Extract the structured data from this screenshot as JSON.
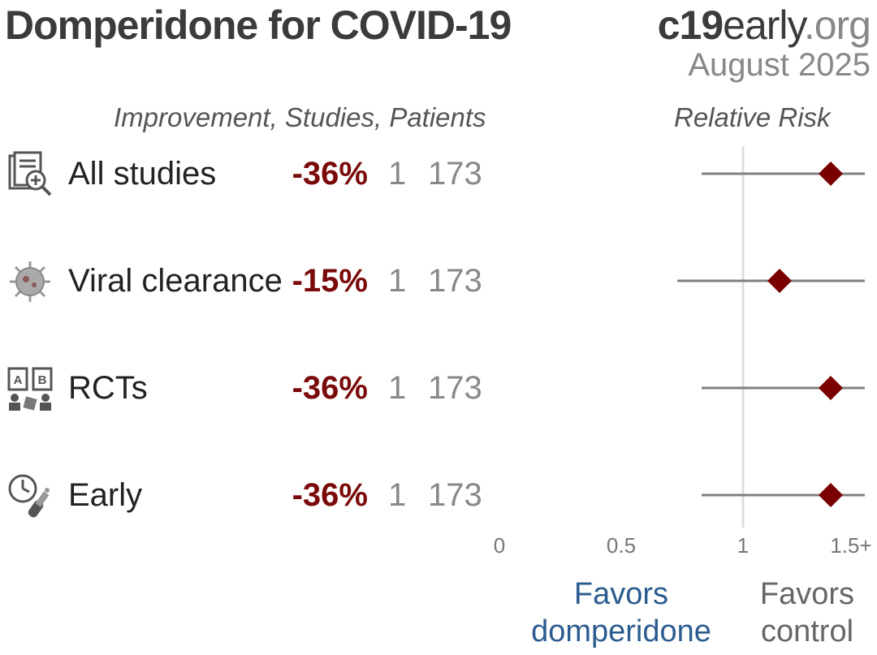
{
  "header": {
    "title": "Domperidone for COVID-19",
    "brand_bold": "c19",
    "brand_main": "early",
    "brand_suffix": ".org",
    "date": "August 2025"
  },
  "columns": {
    "left_header": "Improvement, Studies, Patients",
    "right_header": "Relative Risk"
  },
  "rows": [
    {
      "label": "All studies",
      "improvement": "-36%",
      "studies": "1",
      "patients": "173",
      "icon": "study-document-icon"
    },
    {
      "label": "Viral clearance",
      "improvement": "-15%",
      "studies": "1",
      "patients": "173",
      "icon": "virus-icon"
    },
    {
      "label": "RCTs",
      "improvement": "-36%",
      "studies": "1",
      "patients": "173",
      "icon": "rct-ab-icon"
    },
    {
      "label": "Early",
      "improvement": "-36%",
      "studies": "1",
      "patients": "173",
      "icon": "clock-treatment-icon"
    }
  ],
  "axis": {
    "ticks": [
      "0",
      "0.5",
      "1",
      "1.5+"
    ],
    "favors_left": "Favors domperidone",
    "favors_left_line1": "Favors",
    "favors_left_line2": "domperidone",
    "favors_right_line1": "Favors",
    "favors_right_line2": "control"
  },
  "chart_data": {
    "type": "scatter",
    "title": "",
    "xlabel": "Relative Risk",
    "xlim": [
      0,
      1.5
    ],
    "reference_line": 1,
    "categories": [
      "All studies",
      "Viral clearance",
      "RCTs",
      "Early"
    ],
    "estimates": [
      1.36,
      1.15,
      1.36,
      1.36
    ],
    "ci_lower": [
      0.83,
      0.73,
      0.83,
      0.83
    ],
    "ci_upper": [
      1.5,
      1.5,
      1.5,
      1.5
    ],
    "colors": {
      "marker": "#7a0000",
      "ci": "#808080",
      "reference": "#dddddd"
    }
  }
}
